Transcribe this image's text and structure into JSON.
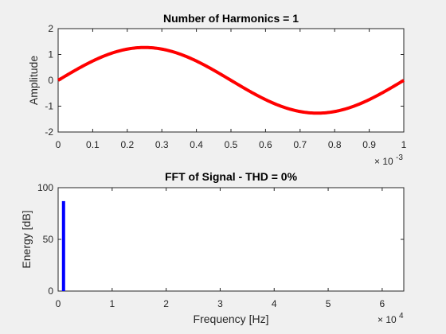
{
  "chart_data": [
    {
      "type": "line",
      "title": "Number of Harmonics = 1",
      "xlabel": "",
      "ylabel": "Amplitude",
      "xlim": [
        0,
        0.001
      ],
      "ylim": [
        -2,
        2
      ],
      "xticks": [
        0,
        0.1,
        0.2,
        0.3,
        0.4,
        0.5,
        0.6,
        0.7,
        0.8,
        0.9,
        1
      ],
      "xtick_labels": [
        "0",
        "0.1",
        "0.2",
        "0.3",
        "0.4",
        "0.5",
        "0.6",
        "0.7",
        "0.8",
        "0.9",
        "1"
      ],
      "x_multiplier_base": "× 10",
      "x_multiplier_exponent": "-3",
      "yticks": [
        -2,
        -1,
        0,
        1,
        2
      ],
      "ytick_labels": [
        "-2",
        "-1",
        "0",
        "1",
        "2"
      ],
      "series": [
        {
          "color": "#ff0000",
          "amplitude": 1.27,
          "frequency_hz": 1000,
          "x": [
            0,
            5e-05,
            0.0001,
            0.00015,
            0.0002,
            0.00025,
            0.0003,
            0.00035,
            0.0004,
            0.00045,
            0.0005,
            0.00055,
            0.0006,
            0.00065,
            0.0007,
            0.00075,
            0.0008,
            0.00085,
            0.0009,
            0.00095,
            0.001
          ],
          "y": [
            0,
            0.39,
            0.75,
            1.03,
            1.21,
            1.27,
            1.21,
            1.03,
            0.75,
            0.39,
            0,
            -0.39,
            -0.75,
            -1.03,
            -1.21,
            -1.27,
            -1.21,
            -1.03,
            -0.75,
            -0.39,
            0
          ]
        }
      ],
      "grid": false
    },
    {
      "type": "bar",
      "title": "FFT of Signal - THD = 0%",
      "xlabel": "Frequency [Hz]",
      "ylabel": "Energy [dB]",
      "xlim": [
        0,
        64000
      ],
      "ylim": [
        0,
        100
      ],
      "xticks": [
        0,
        1,
        2,
        3,
        4,
        5,
        6
      ],
      "xtick_labels": [
        "0",
        "1",
        "2",
        "3",
        "4",
        "5",
        "6"
      ],
      "x_multiplier_base": "× 10",
      "x_multiplier_exponent": "4",
      "yticks": [
        0,
        50,
        100
      ],
      "ytick_labels": [
        "0",
        "50",
        "100"
      ],
      "series": [
        {
          "color": "#0000ff",
          "x": [
            1000
          ],
          "values": [
            87
          ]
        }
      ],
      "grid": false
    }
  ]
}
